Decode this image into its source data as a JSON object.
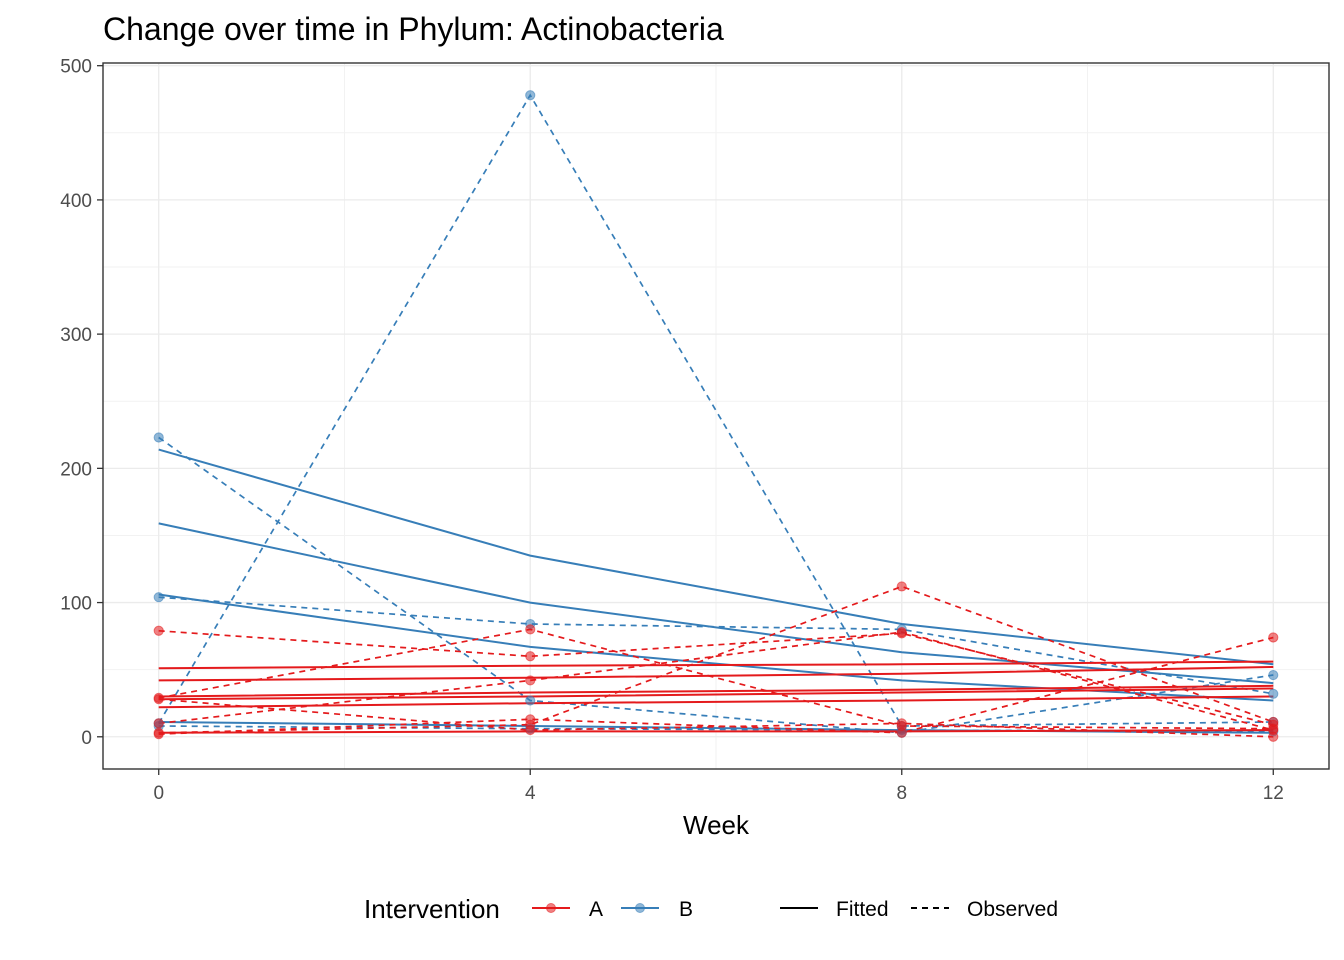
{
  "chart_data": {
    "type": "line",
    "title": "Change over time in Phylum: Actinobacteria",
    "xlabel": "Week",
    "ylabel": "",
    "xlim": [
      -0.6,
      12.6
    ],
    "ylim": [
      -24,
      502
    ],
    "x_ticks": [
      0,
      4,
      8,
      12
    ],
    "y_ticks": [
      0,
      100,
      200,
      300,
      400,
      500
    ],
    "grid": true,
    "legend_position": "bottom",
    "legend": {
      "title": "Intervention",
      "groups": [
        "A",
        "B"
      ],
      "linetypes": [
        "Fitted",
        "Observed"
      ]
    },
    "colors": {
      "A": "#e41a1c",
      "B": "#377eb8"
    },
    "x": [
      0,
      4,
      8,
      12
    ],
    "series": [
      {
        "group": "B",
        "kind": "fitted",
        "values": [
          214,
          135,
          84,
          54
        ]
      },
      {
        "group": "B",
        "kind": "fitted",
        "values": [
          159,
          100,
          63,
          40
        ]
      },
      {
        "group": "B",
        "kind": "fitted",
        "values": [
          106,
          67,
          42,
          27
        ]
      },
      {
        "group": "B",
        "kind": "fitted",
        "values": [
          11,
          8,
          5,
          3
        ]
      },
      {
        "group": "B",
        "kind": "observed",
        "values": [
          10,
          478,
          8,
          11
        ]
      },
      {
        "group": "B",
        "kind": "observed",
        "values": [
          223,
          27,
          3,
          46
        ]
      },
      {
        "group": "B",
        "kind": "observed",
        "values": [
          104,
          84,
          80,
          32
        ]
      },
      {
        "group": "B",
        "kind": "observed",
        "values": [
          8,
          6,
          5,
          4
        ]
      },
      {
        "group": "A",
        "kind": "fitted",
        "values": [
          51,
          53,
          54,
          56
        ]
      },
      {
        "group": "A",
        "kind": "fitted",
        "values": [
          42,
          44,
          47,
          52
        ]
      },
      {
        "group": "A",
        "kind": "fitted",
        "values": [
          30,
          33,
          35,
          38
        ]
      },
      {
        "group": "A",
        "kind": "fitted",
        "values": [
          28,
          30,
          33,
          36
        ]
      },
      {
        "group": "A",
        "kind": "fitted",
        "values": [
          22,
          25,
          27,
          30
        ]
      },
      {
        "group": "A",
        "kind": "fitted",
        "values": [
          3,
          4,
          4,
          5
        ]
      },
      {
        "group": "A",
        "kind": "observed",
        "values": [
          79,
          60,
          77,
          9
        ]
      },
      {
        "group": "A",
        "kind": "observed",
        "values": [
          29,
          80,
          8,
          6
        ]
      },
      {
        "group": "A",
        "kind": "observed",
        "values": [
          3,
          9,
          112,
          11
        ]
      },
      {
        "group": "A",
        "kind": "observed",
        "values": [
          10,
          42,
          78,
          5
        ]
      },
      {
        "group": "A",
        "kind": "observed",
        "values": [
          2,
          13,
          3,
          74
        ]
      },
      {
        "group": "A",
        "kind": "observed",
        "values": [
          28,
          5,
          10,
          0
        ]
      }
    ]
  }
}
